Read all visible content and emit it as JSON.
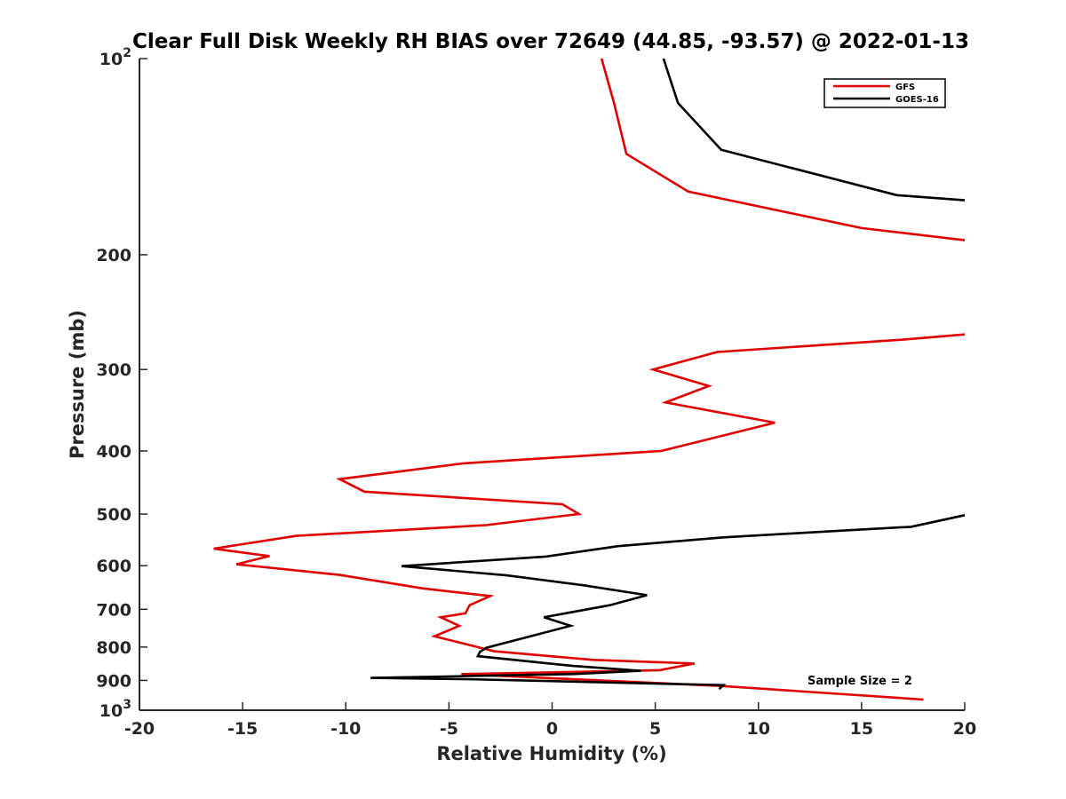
{
  "chart_data": {
    "type": "line",
    "title": "Clear Full Disk Weekly RH BIAS over 72649 (44.85, -93.57) @ 2022-01-13",
    "xlabel": "Relative Humidity (%)",
    "ylabel": "Pressure (mb)",
    "xlim": [
      -20,
      20
    ],
    "ylim": [
      100,
      1000
    ],
    "y_scale": "log",
    "y_reversed": true,
    "grid": false,
    "legend_position": "top-right",
    "x_ticks": [
      -20,
      -15,
      -10,
      -5,
      0,
      5,
      10,
      15,
      20
    ],
    "x_tick_labels": [
      "-20",
      "-15",
      "-10",
      "-5",
      "0",
      "5",
      "10",
      "15",
      "20"
    ],
    "y_ticks": [
      {
        "value": 100,
        "base": "10",
        "exp": "2"
      },
      {
        "value": 200,
        "label": "200"
      },
      {
        "value": 300,
        "label": "300"
      },
      {
        "value": 400,
        "label": "400"
      },
      {
        "value": 500,
        "label": "500"
      },
      {
        "value": 600,
        "label": "600"
      },
      {
        "value": 700,
        "label": "700"
      },
      {
        "value": 800,
        "label": "800"
      },
      {
        "value": 900,
        "label": "900"
      },
      {
        "value": 1000,
        "base": "10",
        "exp": "3"
      }
    ],
    "annotation": "Sample Size = 2",
    "series": [
      {
        "name": "GFS",
        "color": "#e00000",
        "segments": [
          [
            {
              "x": 2.4,
              "y": 100
            },
            {
              "x": 3.0,
              "y": 117
            },
            {
              "x": 3.6,
              "y": 140
            },
            {
              "x": 6.6,
              "y": 160
            },
            {
              "x": 15.0,
              "y": 182
            },
            {
              "x": 20.0,
              "y": 190
            }
          ],
          [
            {
              "x": 20.0,
              "y": 265
            },
            {
              "x": 17.0,
              "y": 270
            },
            {
              "x": 8.0,
              "y": 282
            },
            {
              "x": 4.9,
              "y": 300
            },
            {
              "x": 7.6,
              "y": 318
            },
            {
              "x": 5.5,
              "y": 337
            },
            {
              "x": 10.8,
              "y": 362
            },
            {
              "x": 5.3,
              "y": 400
            },
            {
              "x": -4.3,
              "y": 418
            },
            {
              "x": -10.3,
              "y": 442
            },
            {
              "x": -9.1,
              "y": 462
            },
            {
              "x": 0.5,
              "y": 483
            },
            {
              "x": 1.3,
              "y": 500
            },
            {
              "x": -3.2,
              "y": 520
            },
            {
              "x": -12.4,
              "y": 540
            },
            {
              "x": -16.4,
              "y": 565
            },
            {
              "x": -13.7,
              "y": 580
            },
            {
              "x": -15.3,
              "y": 597
            },
            {
              "x": -10.3,
              "y": 620
            },
            {
              "x": -6.3,
              "y": 650
            },
            {
              "x": -3.0,
              "y": 668
            },
            {
              "x": -4.0,
              "y": 690
            },
            {
              "x": -4.2,
              "y": 710
            },
            {
              "x": -5.4,
              "y": 720
            },
            {
              "x": -4.5,
              "y": 742
            },
            {
              "x": -5.7,
              "y": 770
            },
            {
              "x": -2.8,
              "y": 812
            },
            {
              "x": 2.0,
              "y": 837
            },
            {
              "x": 6.9,
              "y": 848
            },
            {
              "x": 5.2,
              "y": 868
            },
            {
              "x": -4.4,
              "y": 880
            },
            {
              "x": 8.2,
              "y": 918
            },
            {
              "x": 18.0,
              "y": 963
            }
          ]
        ]
      },
      {
        "name": "GOES-16",
        "color": "#000000",
        "segments": [
          [
            {
              "x": 5.4,
              "y": 100
            },
            {
              "x": 6.1,
              "y": 117
            },
            {
              "x": 8.2,
              "y": 138
            },
            {
              "x": 16.7,
              "y": 162
            },
            {
              "x": 20.0,
              "y": 165
            }
          ],
          [
            {
              "x": 20.0,
              "y": 502
            },
            {
              "x": 17.4,
              "y": 523
            },
            {
              "x": 15.0,
              "y": 528
            },
            {
              "x": 8.3,
              "y": 543
            },
            {
              "x": 3.2,
              "y": 560
            },
            {
              "x": -0.3,
              "y": 581
            },
            {
              "x": -7.3,
              "y": 601
            },
            {
              "x": -2.2,
              "y": 621
            },
            {
              "x": 1.5,
              "y": 643
            },
            {
              "x": 4.6,
              "y": 666
            },
            {
              "x": 2.8,
              "y": 690
            },
            {
              "x": -0.4,
              "y": 720
            },
            {
              "x": 0.9,
              "y": 742
            },
            {
              "x": -3.2,
              "y": 802
            },
            {
              "x": -3.5,
              "y": 814
            },
            {
              "x": -3.6,
              "y": 826
            },
            {
              "x": 1.0,
              "y": 855
            },
            {
              "x": 4.3,
              "y": 870
            },
            {
              "x": 1.0,
              "y": 880
            },
            {
              "x": -8.8,
              "y": 892
            },
            {
              "x": -4.2,
              "y": 896
            },
            {
              "x": 8.3,
              "y": 915
            },
            {
              "x": 8.1,
              "y": 928
            }
          ]
        ]
      }
    ]
  }
}
